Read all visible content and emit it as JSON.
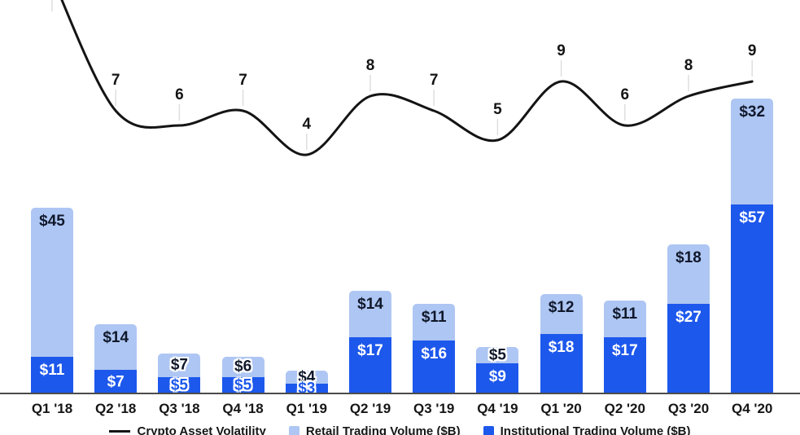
{
  "chart_data": {
    "type": "combo-line-stacked-bar",
    "categories": [
      "Q1 '18",
      "Q2 '18",
      "Q3 '18",
      "Q4 '18",
      "Q1 '19",
      "Q2 '19",
      "Q3 '19",
      "Q4 '19",
      "Q1 '20",
      "Q2 '20",
      "Q3 '20",
      "Q4 '20"
    ],
    "line": {
      "name": "Crypto Asset Volatility",
      "values": [
        null,
        7,
        6,
        7,
        4,
        8,
        7,
        5,
        9,
        6,
        8,
        9
      ],
      "first_point_offscreen_top": true,
      "color": "#141414"
    },
    "bar_series": [
      {
        "name": "Institutional Trading Volume ($B)",
        "color": "#1d58ec",
        "values": [
          11,
          7,
          5,
          5,
          3,
          17,
          16,
          9,
          18,
          17,
          27,
          57
        ],
        "value_prefix": "$"
      },
      {
        "name": "Retail Trading Volume ($B)",
        "color": "#aec6f3",
        "values": [
          45,
          14,
          7,
          6,
          4,
          14,
          11,
          5,
          12,
          11,
          18,
          32
        ],
        "value_prefix": "$"
      }
    ],
    "legend": [
      {
        "marker": "line",
        "color": "#141414",
        "label": "Crypto Asset Volatility"
      },
      {
        "marker": "square",
        "color": "#aec6f3",
        "label": "Retail Trading Volume ($B)"
      },
      {
        "marker": "square",
        "color": "#1d58ec",
        "label": "Institutional Trading Volume ($B)"
      }
    ],
    "layout_hints": {
      "grid": false,
      "legend_position": "bottom-center (partially cut off)",
      "bar_labels_inside": true,
      "line_labels_above_points": true
    },
    "colors": {
      "institutional_blue": "#1d58ec",
      "retail_light_blue": "#aec6f3",
      "line_black": "#141414",
      "axis_gray": "#4b4b4b",
      "label_dark": "#10182b",
      "label_white": "#ffffff"
    }
  }
}
